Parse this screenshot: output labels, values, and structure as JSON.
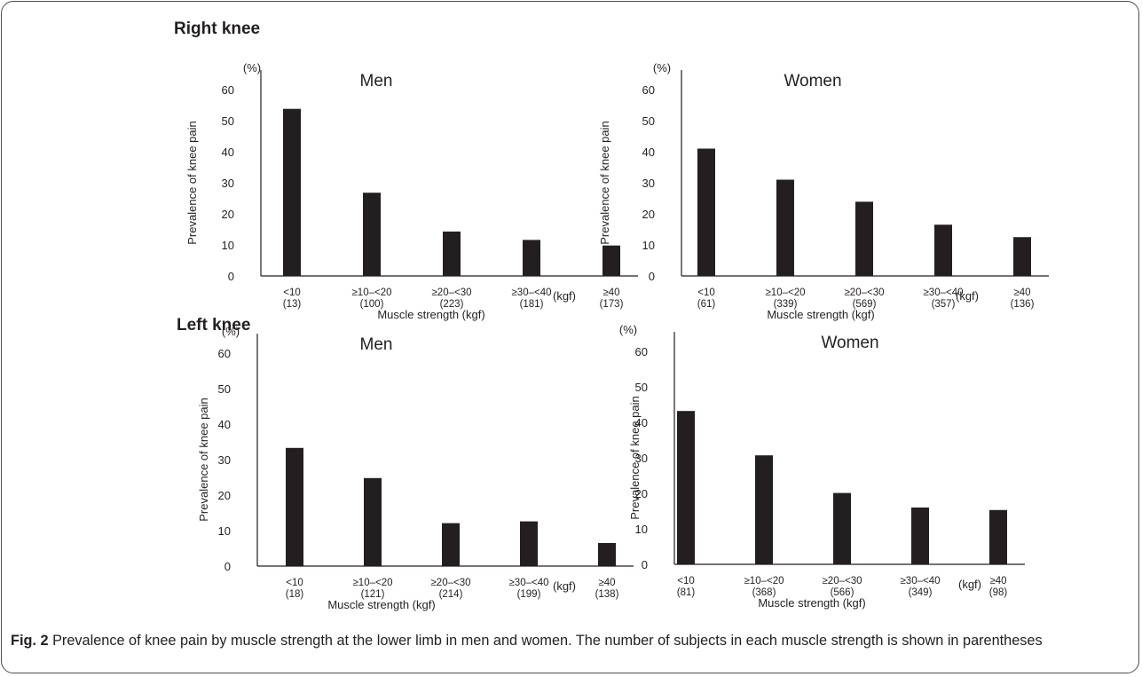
{
  "figure": {
    "sections": [
      {
        "title": "Right knee"
      },
      {
        "title": "Left knee"
      }
    ],
    "caption": {
      "label": "Fig. 2",
      "text": "Prevalence of knee pain by muscle strength at the lower limb in men and women. The number of subjects in each muscle strength is shown in parentheses"
    }
  },
  "chart_data": [
    {
      "type": "bar",
      "panel": "Right knee",
      "title": "Men",
      "xlabel": "Muscle strength (kgf)",
      "x_unit": "(kgf)",
      "ylabel": "Prevalence of knee pain",
      "y_unit": "(%)",
      "ylim": [
        0,
        60
      ],
      "yticks": [
        0,
        10,
        20,
        30,
        40,
        50,
        60
      ],
      "categories": [
        "<10",
        "≥10–<20",
        "≥20–<30",
        "≥30–<40",
        "≥40"
      ],
      "counts": [
        "(13)",
        "(100)",
        "(223)",
        "(181)",
        "(173)"
      ],
      "values": [
        53.8,
        26.8,
        14.3,
        11.6,
        9.8
      ],
      "bar_color": "#231f20"
    },
    {
      "type": "bar",
      "panel": "Right knee",
      "title": "Women",
      "xlabel": "Muscle strength (kgf)",
      "x_unit": "(kgf)",
      "ylabel": "Prevalence of knee pain",
      "y_unit": "(%)",
      "ylim": [
        0,
        60
      ],
      "yticks": [
        0,
        10,
        20,
        30,
        40,
        50,
        60
      ],
      "categories": [
        "<10",
        "≥10–<20",
        "≥20–<30",
        "≥30–<40",
        "≥40"
      ],
      "counts": [
        "(61)",
        "(339)",
        "(569)",
        "(357)",
        "(136)"
      ],
      "values": [
        41.0,
        31.0,
        23.9,
        16.5,
        12.5
      ],
      "bar_color": "#231f20"
    },
    {
      "type": "bar",
      "panel": "Left knee",
      "title": "Men",
      "xlabel": "Muscle strength (kgf)",
      "x_unit": "(kgf)",
      "ylabel": "Prevalence of knee pain",
      "y_unit": "(%)",
      "ylim": [
        0,
        60
      ],
      "yticks": [
        0,
        10,
        20,
        30,
        40,
        50,
        60
      ],
      "categories": [
        "<10",
        "≥10–<20",
        "≥20–<30",
        "≥30–<40",
        "≥40"
      ],
      "counts": [
        "(18)",
        "(121)",
        "(214)",
        "(199)",
        "(138)"
      ],
      "values": [
        33.3,
        24.8,
        12.1,
        12.6,
        6.5
      ],
      "bar_color": "#231f20"
    },
    {
      "type": "bar",
      "panel": "Left knee",
      "title": "Women",
      "xlabel": "Muscle strength (kgf)",
      "x_unit": "(kgf)",
      "ylabel": "Prevalence of knee pain",
      "y_unit": "(%)",
      "ylim": [
        0,
        60
      ],
      "yticks": [
        0,
        10,
        20,
        30,
        40,
        50,
        60
      ],
      "categories": [
        "<10",
        "≥10–<20",
        "≥20–<30",
        "≥30–<40",
        "≥40"
      ],
      "counts": [
        "(81)",
        "(368)",
        "(566)",
        "(349)",
        "(98)"
      ],
      "values": [
        43.2,
        30.7,
        20.1,
        16.0,
        15.3
      ],
      "bar_color": "#231f20"
    }
  ]
}
